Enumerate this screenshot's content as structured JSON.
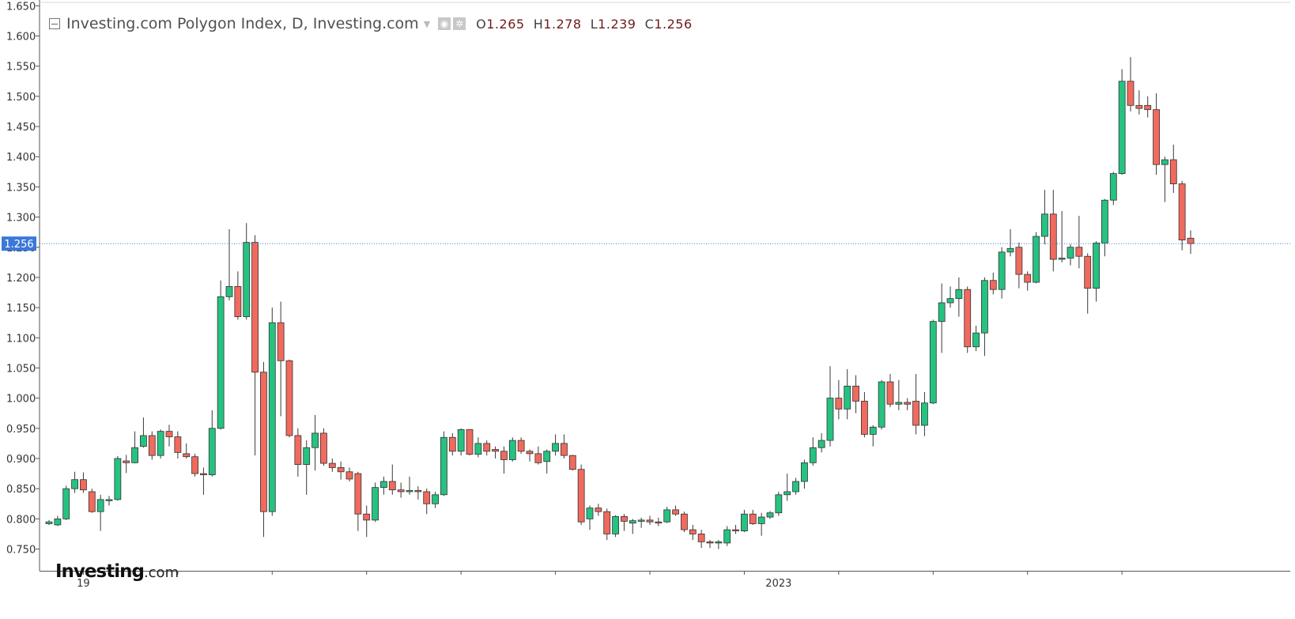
{
  "legend": {
    "title": "Investing.com Polygon Index, D, Investing.com",
    "o_key": "O",
    "o_val": "1.265",
    "h_key": "H",
    "h_val": "1.278",
    "l_key": "L",
    "l_val": "1.239",
    "c_key": "C",
    "c_val": "1.256"
  },
  "watermark": {
    "brand": "Investing",
    "suffix": ".com"
  },
  "colors": {
    "up": "#26c281",
    "down": "#f06a5e",
    "wick": "#3a3a3a",
    "price_line": "#3c78d8",
    "price_tag": "#3c78d8",
    "axis": "#555555"
  },
  "chart_data": {
    "type": "candlestick",
    "title": "Investing.com Polygon Index, D, Investing.com",
    "ylim": [
      0.714,
      1.657
    ],
    "y_ticks": [
      "1.650",
      "1.600",
      "1.550",
      "1.500",
      "1.450",
      "1.400",
      "1.350",
      "1.300",
      "1.250",
      "1.200",
      "1.150",
      "1.100",
      "1.050",
      "1.000",
      "0.950",
      "0.900",
      "0.850",
      "0.800",
      "0.750"
    ],
    "x_labels": [
      "19",
      "2023"
    ],
    "x_label_index": [
      4,
      85
    ],
    "last_price": "1.256",
    "grid": false,
    "candles": [
      [
        0.792,
        0.798,
        0.79,
        0.795
      ],
      [
        0.79,
        0.805,
        0.788,
        0.8
      ],
      [
        0.8,
        0.855,
        0.798,
        0.85
      ],
      [
        0.85,
        0.878,
        0.843,
        0.865
      ],
      [
        0.865,
        0.877,
        0.843,
        0.848
      ],
      [
        0.845,
        0.85,
        0.81,
        0.812
      ],
      [
        0.812,
        0.84,
        0.78,
        0.832
      ],
      [
        0.83,
        0.838,
        0.822,
        0.832
      ],
      [
        0.832,
        0.904,
        0.83,
        0.9
      ],
      [
        0.896,
        0.906,
        0.876,
        0.893
      ],
      [
        0.893,
        0.945,
        0.892,
        0.918
      ],
      [
        0.92,
        0.968,
        0.918,
        0.938
      ],
      [
        0.938,
        0.945,
        0.898,
        0.905
      ],
      [
        0.905,
        0.948,
        0.9,
        0.945
      ],
      [
        0.945,
        0.956,
        0.92,
        0.936
      ],
      [
        0.936,
        0.945,
        0.9,
        0.91
      ],
      [
        0.908,
        0.925,
        0.9,
        0.903
      ],
      [
        0.903,
        0.908,
        0.87,
        0.875
      ],
      [
        0.875,
        0.885,
        0.84,
        0.873
      ],
      [
        0.873,
        0.98,
        0.87,
        0.95
      ],
      [
        0.95,
        1.195,
        0.948,
        1.168
      ],
      [
        1.168,
        1.28,
        1.162,
        1.185
      ],
      [
        1.185,
        1.21,
        1.13,
        1.135
      ],
      [
        1.135,
        1.29,
        1.13,
        1.258
      ],
      [
        1.258,
        1.27,
        0.905,
        1.043
      ],
      [
        1.043,
        1.06,
        0.77,
        0.812
      ],
      [
        0.812,
        1.15,
        0.805,
        1.125
      ],
      [
        1.125,
        1.16,
        0.97,
        1.062
      ],
      [
        1.062,
        1.064,
        0.935,
        0.938
      ],
      [
        0.938,
        0.95,
        0.87,
        0.89
      ],
      [
        0.89,
        0.93,
        0.84,
        0.918
      ],
      [
        0.918,
        0.972,
        0.88,
        0.942
      ],
      [
        0.942,
        0.95,
        0.888,
        0.892
      ],
      [
        0.892,
        0.9,
        0.878,
        0.885
      ],
      [
        0.885,
        0.895,
        0.865,
        0.878
      ],
      [
        0.878,
        0.885,
        0.862,
        0.866
      ],
      [
        0.875,
        0.878,
        0.78,
        0.808
      ],
      [
        0.808,
        0.822,
        0.77,
        0.798
      ],
      [
        0.798,
        0.86,
        0.795,
        0.852
      ],
      [
        0.852,
        0.87,
        0.84,
        0.862
      ],
      [
        0.862,
        0.89,
        0.84,
        0.848
      ],
      [
        0.848,
        0.86,
        0.835,
        0.845
      ],
      [
        0.845,
        0.87,
        0.84,
        0.847
      ],
      [
        0.847,
        0.854,
        0.832,
        0.845
      ],
      [
        0.845,
        0.85,
        0.808,
        0.825
      ],
      [
        0.825,
        0.845,
        0.818,
        0.84
      ],
      [
        0.84,
        0.945,
        0.838,
        0.935
      ],
      [
        0.935,
        0.942,
        0.905,
        0.912
      ],
      [
        0.912,
        0.95,
        0.905,
        0.948
      ],
      [
        0.948,
        0.948,
        0.905,
        0.907
      ],
      [
        0.907,
        0.935,
        0.902,
        0.925
      ],
      [
        0.925,
        0.93,
        0.905,
        0.912
      ],
      [
        0.915,
        0.92,
        0.9,
        0.912
      ],
      [
        0.912,
        0.92,
        0.875,
        0.898
      ],
      [
        0.898,
        0.935,
        0.895,
        0.93
      ],
      [
        0.93,
        0.935,
        0.908,
        0.912
      ],
      [
        0.912,
        0.915,
        0.895,
        0.908
      ],
      [
        0.908,
        0.92,
        0.89,
        0.893
      ],
      [
        0.895,
        0.915,
        0.875,
        0.912
      ],
      [
        0.912,
        0.94,
        0.905,
        0.925
      ],
      [
        0.925,
        0.94,
        0.9,
        0.905
      ],
      [
        0.905,
        0.906,
        0.88,
        0.882
      ],
      [
        0.882,
        0.89,
        0.79,
        0.795
      ],
      [
        0.8,
        0.822,
        0.782,
        0.818
      ],
      [
        0.818,
        0.825,
        0.805,
        0.812
      ],
      [
        0.812,
        0.817,
        0.765,
        0.775
      ],
      [
        0.775,
        0.806,
        0.77,
        0.804
      ],
      [
        0.804,
        0.808,
        0.78,
        0.796
      ],
      [
        0.793,
        0.8,
        0.775,
        0.797
      ],
      [
        0.796,
        0.802,
        0.785,
        0.798
      ],
      [
        0.798,
        0.805,
        0.79,
        0.795
      ],
      [
        0.795,
        0.802,
        0.788,
        0.793
      ],
      [
        0.795,
        0.82,
        0.793,
        0.815
      ],
      [
        0.815,
        0.822,
        0.805,
        0.808
      ],
      [
        0.808,
        0.812,
        0.778,
        0.782
      ],
      [
        0.782,
        0.79,
        0.765,
        0.775
      ],
      [
        0.775,
        0.782,
        0.752,
        0.762
      ],
      [
        0.762,
        0.765,
        0.752,
        0.76
      ],
      [
        0.76,
        0.765,
        0.75,
        0.762
      ],
      [
        0.76,
        0.788,
        0.755,
        0.782
      ],
      [
        0.782,
        0.79,
        0.775,
        0.78
      ],
      [
        0.78,
        0.815,
        0.778,
        0.808
      ],
      [
        0.808,
        0.815,
        0.79,
        0.792
      ],
      [
        0.792,
        0.81,
        0.772,
        0.803
      ],
      [
        0.803,
        0.813,
        0.8,
        0.81
      ],
      [
        0.81,
        0.845,
        0.805,
        0.84
      ],
      [
        0.84,
        0.875,
        0.83,
        0.845
      ],
      [
        0.845,
        0.868,
        0.84,
        0.862
      ],
      [
        0.862,
        0.898,
        0.85,
        0.893
      ],
      [
        0.893,
        0.935,
        0.888,
        0.918
      ],
      [
        0.918,
        0.942,
        0.91,
        0.93
      ],
      [
        0.93,
        1.053,
        0.92,
        1.0
      ],
      [
        1.0,
        1.03,
        0.965,
        0.982
      ],
      [
        0.982,
        1.048,
        0.965,
        1.02
      ],
      [
        1.02,
        1.038,
        0.975,
        0.995
      ],
      [
        0.995,
        1.01,
        0.935,
        0.94
      ],
      [
        0.94,
        0.955,
        0.92,
        0.952
      ],
      [
        0.952,
        1.03,
        0.948,
        1.027
      ],
      [
        1.027,
        1.04,
        0.985,
        0.99
      ],
      [
        0.99,
        1.03,
        0.98,
        0.993
      ],
      [
        0.993,
        1.0,
        0.98,
        0.99
      ],
      [
        0.995,
        1.04,
        0.94,
        0.955
      ],
      [
        0.955,
        1.01,
        0.937,
        0.992
      ],
      [
        0.992,
        1.13,
        0.99,
        1.127
      ],
      [
        1.127,
        1.19,
        1.075,
        1.158
      ],
      [
        1.158,
        1.185,
        1.15,
        1.165
      ],
      [
        1.165,
        1.2,
        1.135,
        1.18
      ],
      [
        1.18,
        1.185,
        1.075,
        1.085
      ],
      [
        1.085,
        1.12,
        1.078,
        1.108
      ],
      [
        1.108,
        1.2,
        1.07,
        1.195
      ],
      [
        1.195,
        1.208,
        1.172,
        1.18
      ],
      [
        1.18,
        1.25,
        1.165,
        1.242
      ],
      [
        1.242,
        1.28,
        1.235,
        1.248
      ],
      [
        1.25,
        1.258,
        1.182,
        1.205
      ],
      [
        1.205,
        1.21,
        1.178,
        1.192
      ],
      [
        1.192,
        1.275,
        1.19,
        1.268
      ],
      [
        1.268,
        1.345,
        1.255,
        1.305
      ],
      [
        1.305,
        1.345,
        1.21,
        1.23
      ],
      [
        1.232,
        1.31,
        1.225,
        1.232
      ],
      [
        1.232,
        1.255,
        1.22,
        1.25
      ],
      [
        1.25,
        1.302,
        1.215,
        1.235
      ],
      [
        1.235,
        1.24,
        1.14,
        1.182
      ],
      [
        1.182,
        1.26,
        1.16,
        1.257
      ],
      [
        1.257,
        1.33,
        1.235,
        1.328
      ],
      [
        1.328,
        1.375,
        1.32,
        1.372
      ],
      [
        1.372,
        1.545,
        1.37,
        1.525
      ],
      [
        1.525,
        1.565,
        1.475,
        1.485
      ],
      [
        1.485,
        1.51,
        1.47,
        1.48
      ],
      [
        1.485,
        1.5,
        1.465,
        1.478
      ],
      [
        1.478,
        1.505,
        1.37,
        1.387
      ],
      [
        1.387,
        1.4,
        1.325,
        1.395
      ],
      [
        1.395,
        1.42,
        1.34,
        1.355
      ],
      [
        1.355,
        1.36,
        1.245,
        1.262
      ],
      [
        1.265,
        1.278,
        1.239,
        1.256
      ]
    ]
  }
}
